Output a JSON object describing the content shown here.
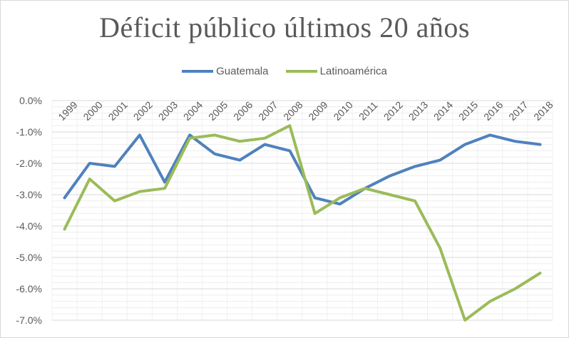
{
  "chart_data": {
    "type": "line",
    "title": "Déficit público últimos 20 años",
    "xlabel": "",
    "ylabel": "",
    "categories": [
      "1999",
      "2000",
      "2001",
      "2002",
      "2003",
      "2004",
      "2005",
      "2006",
      "2007",
      "2008",
      "2009",
      "2010",
      "2011",
      "2012",
      "2013",
      "2014",
      "2015",
      "2016",
      "2017",
      "2018"
    ],
    "y_ticks": [
      "0.0%",
      "-1.0%",
      "-2.0%",
      "-3.0%",
      "-4.0%",
      "-5.0%",
      "-6.0%",
      "-7.0%"
    ],
    "ylim": [
      -7.0,
      0.0
    ],
    "grid": true,
    "legend_position": "top",
    "series": [
      {
        "name": "Guatemala",
        "color": "#4f81bd",
        "values": [
          -3.1,
          -2.0,
          -2.1,
          -1.1,
          -2.6,
          -1.1,
          -1.7,
          -1.9,
          -1.4,
          -1.6,
          -3.1,
          -3.3,
          -2.8,
          -2.4,
          -2.1,
          -1.9,
          -1.4,
          -1.1,
          -1.3,
          -1.4
        ]
      },
      {
        "name": "Latinoamérica",
        "color": "#9bbb59",
        "values": [
          -4.1,
          -2.5,
          -3.2,
          -2.9,
          -2.8,
          -1.2,
          -1.1,
          -1.3,
          -1.2,
          -0.8,
          -3.6,
          -3.1,
          -2.8,
          -3.0,
          -3.2,
          -4.7,
          -7.0,
          -6.4,
          -6.0,
          -5.5
        ]
      }
    ]
  }
}
